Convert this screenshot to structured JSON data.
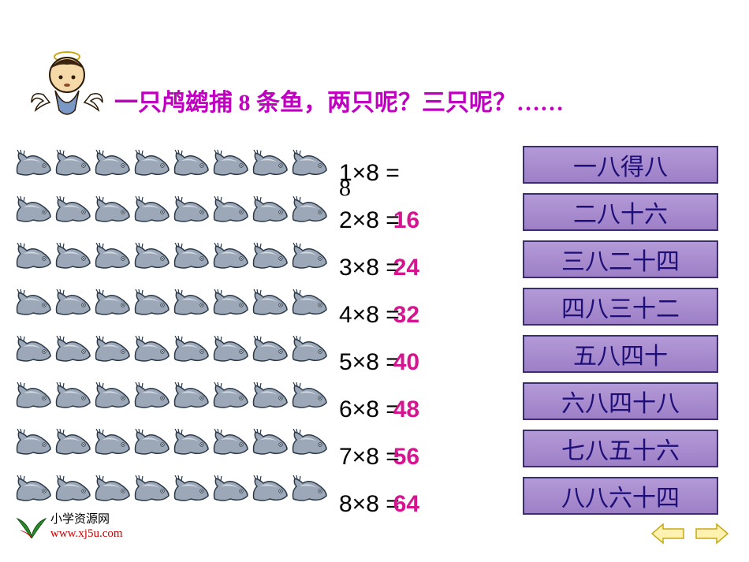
{
  "question": "一只鸬鹚捕 8 条鱼，两只呢？三只呢？……",
  "question_color": "#c000c0",
  "multiplicand": 8,
  "rows": [
    {
      "expr": "1×8 =",
      "result": "8",
      "result_color": "#000000",
      "mnemonic": "一八得八"
    },
    {
      "expr": "2×8 =",
      "result": "16",
      "result_color": "#d6148f",
      "mnemonic": "二八十六"
    },
    {
      "expr": "3×8 =",
      "result": "24",
      "result_color": "#d6148f",
      "mnemonic": "三八二十四"
    },
    {
      "expr": "4×8 =",
      "result": "32",
      "result_color": "#d6148f",
      "mnemonic": "四八三十二"
    },
    {
      "expr": "5×8 =",
      "result": "40",
      "result_color": "#d6148f",
      "mnemonic": "五八四十"
    },
    {
      "expr": "6×8 =",
      "result": "48",
      "result_color": "#d6148f",
      "mnemonic": "六八四十八"
    },
    {
      "expr": "7×8 =",
      "result": "56",
      "result_color": "#d6148f",
      "mnemonic": "七八五十六"
    },
    {
      "expr": "8×8 =",
      "result": "64",
      "result_color": "#d6148f",
      "mnemonic": "八八六十四"
    }
  ],
  "fish_per_row": 8,
  "fish_rows": 8,
  "fish_body_color": "#9ca8b8",
  "fish_highlight_color": "#d5dce4",
  "fish_outline_color": "#2b3a4a",
  "mnemonic_box": {
    "bg_top": "#b49ad8",
    "bg_bottom": "#9d7fc6",
    "border_color": "#3b2e6f",
    "text_color": "#1e0f78",
    "font_size": 30
  },
  "logo": {
    "cn": "小学资源网",
    "url": "www.xj5u.com",
    "leaf_color": "#2a8c2a"
  },
  "nav": {
    "prev": "previous-slide",
    "next": "next-slide",
    "arrow_fill": "#fff2b0",
    "arrow_stroke": "#c9a815"
  }
}
